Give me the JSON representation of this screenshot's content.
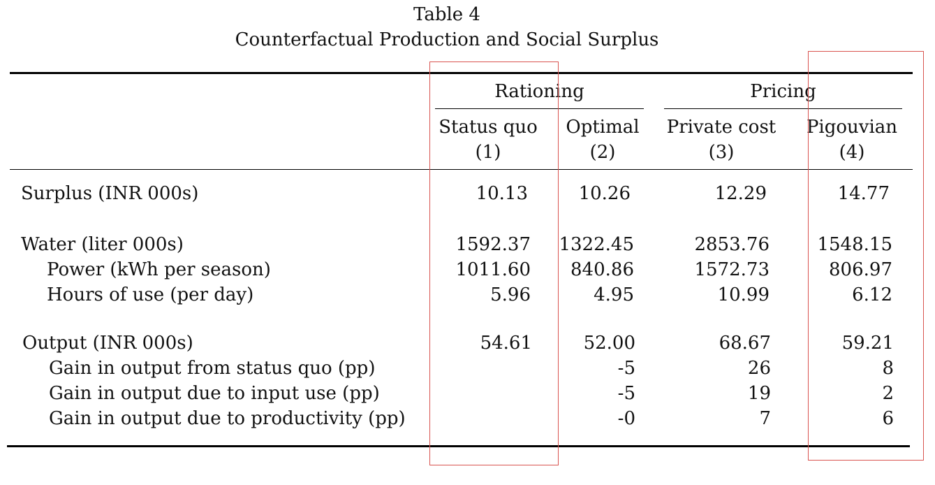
{
  "table": {
    "label": "Table 4",
    "title": "Counterfactual Production and Social Surplus",
    "groups": {
      "rationing": "Rationing",
      "pricing": "Pricing"
    },
    "columns": [
      {
        "name": "Status quo",
        "number": "(1)"
      },
      {
        "name": "Optimal",
        "number": "(2)"
      },
      {
        "name": "Private cost",
        "number": "(3)"
      },
      {
        "name": "Pigouvian",
        "number": "(4)"
      }
    ],
    "rows": [
      {
        "label": "Surplus (INR 000s)",
        "values": [
          "10.13",
          "10.26",
          "12.29",
          "14.77"
        ]
      },
      {
        "label": "Water (liter 000s)",
        "values": [
          "1592.37",
          "1322.45",
          "2853.76",
          "1548.15"
        ]
      },
      {
        "label": "Power (kWh per season)",
        "values": [
          "1011.60",
          "840.86",
          "1572.73",
          "806.97"
        ]
      },
      {
        "label": "Hours of use (per day)",
        "values": [
          "5.96",
          "4.95",
          "10.99",
          "6.12"
        ]
      },
      {
        "label": "Output (INR 000s)",
        "values": [
          "54.61",
          "52.00",
          "68.67",
          "59.21"
        ]
      },
      {
        "label": "Gain in output from status quo (pp)",
        "values": [
          "",
          "-5",
          "26",
          "8"
        ]
      },
      {
        "label": "Gain in output due to input use (pp)",
        "values": [
          "",
          "-5",
          "19",
          "2"
        ]
      },
      {
        "label": "Gain in output due to productivity (pp)",
        "values": [
          "",
          "-0",
          "7",
          "6"
        ]
      }
    ]
  },
  "highlight_color": "#d9534f"
}
